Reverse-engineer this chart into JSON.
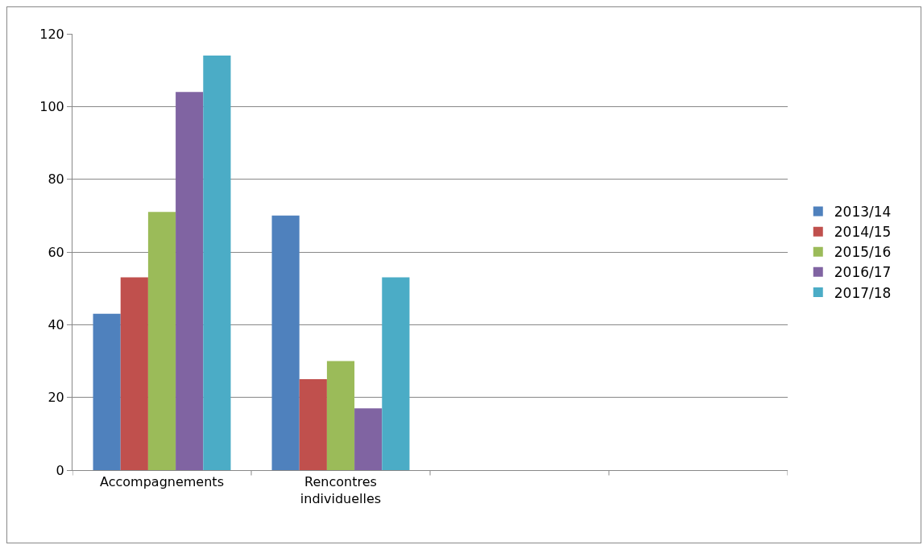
{
  "chart_data": {
    "type": "bar",
    "categories": [
      "Accompagnements",
      "Rencontres individuelles",
      null,
      null
    ],
    "series": [
      {
        "name": "2013/14",
        "color": "#4f81bd",
        "values": [
          43,
          70,
          null,
          null
        ]
      },
      {
        "name": "2014/15",
        "color": "#c0504d",
        "values": [
          53,
          25,
          null,
          null
        ]
      },
      {
        "name": "2015/16",
        "color": "#9bbb59",
        "values": [
          71,
          30,
          null,
          null
        ]
      },
      {
        "name": "2016/17",
        "color": "#8064a2",
        "values": [
          104,
          17,
          null,
          null
        ]
      },
      {
        "name": "2017/18",
        "color": "#4bacc6",
        "values": [
          114,
          53,
          null,
          null
        ]
      }
    ],
    "ylim": [
      0,
      120
    ],
    "yticks": [
      0,
      20,
      40,
      60,
      80,
      100,
      120
    ],
    "grid": "y",
    "legend": "right"
  }
}
